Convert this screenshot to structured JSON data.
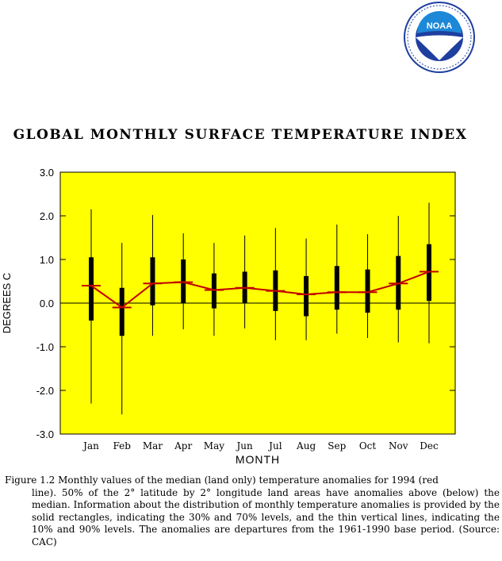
{
  "logo": {
    "text": "NOAA",
    "colors": {
      "ring": "#1f3f9f",
      "inner": "#1e88d8",
      "bird": "#ffffff"
    }
  },
  "caption": {
    "lead": "Figure 1.2 Monthly values of the median (land only) temperature anomalies for 1994 (red",
    "rest": "line). 50% of the 2° latitude by 2° longitude land areas have anomalies above (below) the median. Information about the distribution of monthly temperature anomalies is provided by the solid rectangles, indicating the 30% and 70% levels, and the thin vertical lines, indicating the 10% and 90% levels. The anomalies are departures from the 1961-1990 base period. (Source: CAC)"
  },
  "chart_data": {
    "type": "line",
    "title": "GLOBAL MONTHLY SURFACE TEMPERATURE INDEX",
    "xlabel": "MONTH",
    "ylabel": "DEGREES C",
    "ylim": [
      -3.0,
      3.0
    ],
    "yticks": [
      "3.0",
      "2.0",
      "1.0",
      "0.0",
      "-1.0",
      "-2.0",
      "-3.0"
    ],
    "ytick_values": [
      3,
      2,
      1,
      0,
      -1,
      -2,
      -3
    ],
    "categories": [
      "Jan",
      "Feb",
      "Mar",
      "Apr",
      "May",
      "Jun",
      "Jul",
      "Aug",
      "Sep",
      "Oct",
      "Nov",
      "Dec"
    ],
    "median": [
      0.4,
      -0.1,
      0.45,
      0.48,
      0.3,
      0.35,
      0.28,
      0.2,
      0.25,
      0.25,
      0.45,
      0.72
    ],
    "p10": [
      -2.3,
      -2.55,
      -0.75,
      -0.6,
      -0.75,
      -0.58,
      -0.85,
      -0.85,
      -0.7,
      -0.8,
      -0.9,
      -0.92
    ],
    "p30": [
      -0.4,
      -0.75,
      -0.05,
      0.0,
      -0.12,
      0.0,
      -0.18,
      -0.3,
      -0.15,
      -0.22,
      -0.15,
      0.05
    ],
    "p70": [
      1.05,
      0.35,
      1.05,
      1.0,
      0.68,
      0.72,
      0.75,
      0.62,
      0.85,
      0.77,
      1.08,
      1.35
    ],
    "p90": [
      2.15,
      1.38,
      2.02,
      1.6,
      1.38,
      1.55,
      1.72,
      1.48,
      1.8,
      1.58,
      2.0,
      2.3
    ],
    "zero_line": true,
    "colors": {
      "plot_bg": "#ffff00",
      "line": "#c00000",
      "bars": "#000000"
    }
  }
}
